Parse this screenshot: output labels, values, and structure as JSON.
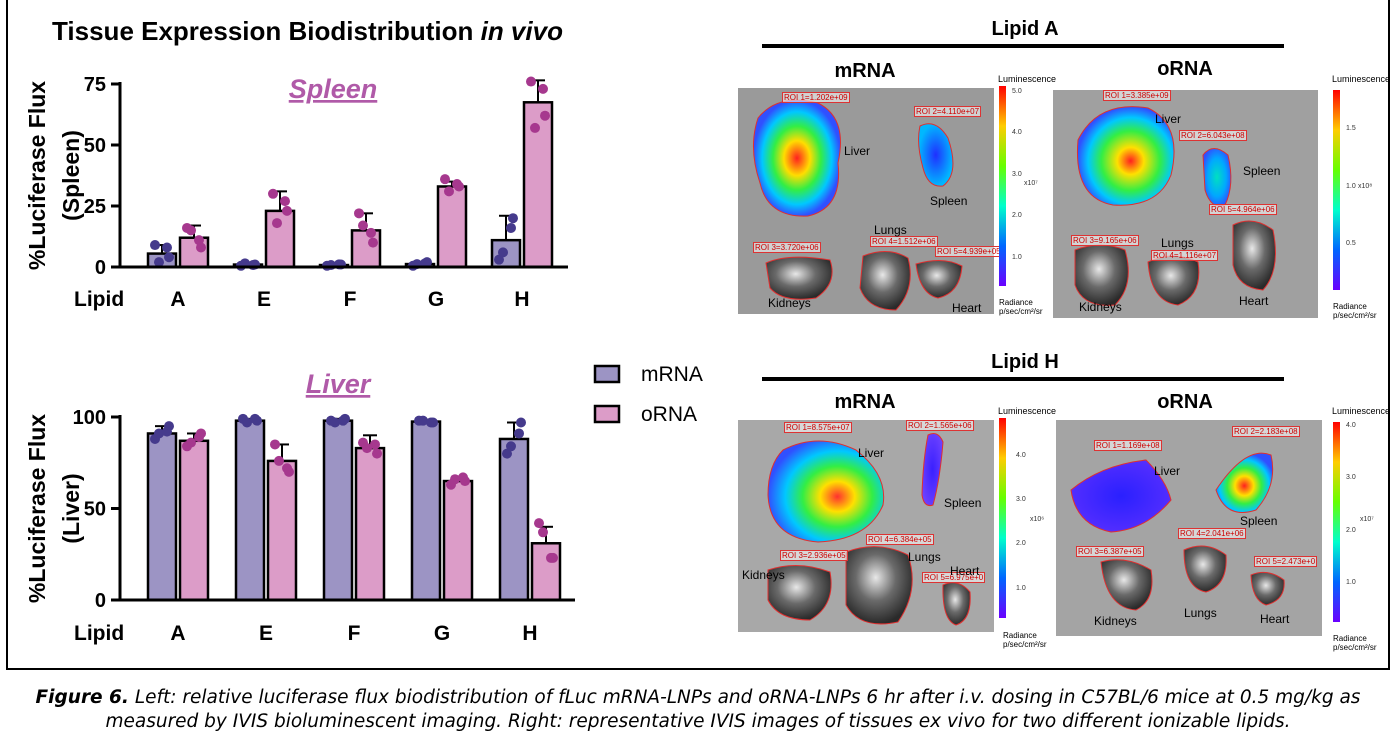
{
  "main_title": {
    "text": "Tissue Expression Biodistribution ",
    "italic": "in vivo"
  },
  "legend": [
    {
      "name": "mRNA",
      "color": "#9c94c4"
    },
    {
      "name": "oRNA",
      "color": "#dc9cc8"
    }
  ],
  "chart_data": [
    {
      "type": "bar",
      "title": "Spleen",
      "title_color": "#b05aa8",
      "ylabel_lines": [
        "%Luciferase Flux",
        "(Spleen)"
      ],
      "xlabel": "Lipid",
      "categories": [
        "A",
        "E",
        "F",
        "G",
        "H"
      ],
      "ylim": [
        0,
        75
      ],
      "yticks": [
        0,
        25,
        50,
        75
      ],
      "series": [
        {
          "name": "mRNA",
          "values": [
            5.5,
            1.0,
            0.8,
            1.2,
            11
          ],
          "errors": [
            3.5,
            0.6,
            0.5,
            0.6,
            10
          ],
          "points": [
            [
              9,
              4,
              2,
              8
            ],
            [
              0.5,
              1.0,
              1.5,
              0.8
            ],
            [
              0.5,
              1,
              0.8,
              1.1
            ],
            [
              0.5,
              2,
              1.2,
              1.5
            ],
            [
              3,
              20,
              6,
              16
            ]
          ]
        },
        {
          "name": "oRNA",
          "values": [
            12,
            23,
            15,
            33,
            67.5
          ],
          "errors": [
            5,
            8,
            7,
            2,
            9
          ],
          "points": [
            [
              16,
              8,
              15,
              11
            ],
            [
              30,
              23,
              18,
              27
            ],
            [
              22,
              10,
              17,
              14
            ],
            [
              36,
              33,
              31,
              34
            ],
            [
              76,
              62,
              57,
              73
            ]
          ]
        }
      ]
    },
    {
      "type": "bar",
      "title": "Liver",
      "title_color": "#b05aa8",
      "ylabel_lines": [
        "%Luciferase Flux",
        "(Liver)"
      ],
      "xlabel": "Lipid",
      "categories": [
        "A",
        "E",
        "F",
        "G",
        "H"
      ],
      "ylim": [
        0,
        100
      ],
      "yticks": [
        0,
        50,
        100
      ],
      "series": [
        {
          "name": "mRNA",
          "values": [
            91,
            98,
            98,
            97.5,
            88
          ],
          "errors": [
            4,
            1,
            1,
            1,
            9
          ],
          "points": [
            [
              88,
              95,
              91,
              92
            ],
            [
              99,
              98,
              97,
              99
            ],
            [
              98,
              99,
              97,
              98
            ],
            [
              98,
              97,
              98,
              97
            ],
            [
              80,
              97,
              84,
              91
            ]
          ]
        },
        {
          "name": "oRNA",
          "values": [
            87,
            76,
            83,
            65,
            31
          ],
          "errors": [
            4,
            9,
            7,
            2,
            9
          ],
          "points": [
            [
              84,
              91,
              86,
              89
            ],
            [
              85,
              70,
              76,
              72
            ],
            [
              86,
              80,
              83,
              85
            ],
            [
              63,
              65,
              66,
              67
            ],
            [
              42,
              23,
              37,
              23
            ]
          ]
        }
      ]
    }
  ],
  "ivis": {
    "sections": [
      {
        "title": "Lipid A"
      },
      {
        "title": "Lipid H"
      }
    ],
    "panels": [
      {
        "column_label": "mRNA",
        "organs": [
          "Liver",
          "Spleen",
          "Lungs",
          "Kidneys",
          "Heart"
        ],
        "rois": [
          "ROI 1=1.202e+09",
          "ROI 2=4.110e+07",
          "ROI 3=3.720e+06",
          "ROI 4=1.512e+06",
          "ROI 5=4.939e+05"
        ],
        "colorbar": {
          "title": "Luminescence",
          "ticks": [
            "5.0",
            "4.0",
            "3.0",
            "2.0",
            "1.0"
          ],
          "exponent": "x10⁷",
          "footer": [
            "Radiance",
            "p/sec/cm²/sr"
          ]
        }
      },
      {
        "column_label": "oRNA",
        "organs": [
          "Liver",
          "Spleen",
          "Lungs",
          "Kidneys",
          "Heart"
        ],
        "rois": [
          "ROI 1=3.385e+09",
          "ROI 2=6.043e+08",
          "ROI 3=9.165e+06",
          "ROI 4=1.116e+07",
          "ROI 5=4.964e+06"
        ],
        "colorbar": {
          "title": "Luminescence",
          "ticks": [
            "1.5",
            "1.0",
            "0.5"
          ],
          "exponent": "x10⁸",
          "footer": [
            "Radiance",
            "p/sec/cm²/sr"
          ]
        }
      },
      {
        "column_label": "mRNA",
        "organs": [
          "Liver",
          "Spleen",
          "Lungs",
          "Kidneys",
          "Heart"
        ],
        "rois": [
          "ROI 1=8.575e+07",
          "ROI 2=1.565e+06",
          "ROI 3=2.936e+05",
          "ROI 4=6.384e+05",
          "ROI 5=6.975e+0"
        ],
        "colorbar": {
          "title": "Luminescence",
          "ticks": [
            "4.0",
            "3.0",
            "2.0",
            "1.0"
          ],
          "exponent": "x10⁶",
          "footer": [
            "Radiance",
            "p/sec/cm²/sr"
          ]
        }
      },
      {
        "column_label": "oRNA",
        "organs": [
          "Liver",
          "Spleen",
          "Lungs",
          "Kidneys",
          "Heart"
        ],
        "rois": [
          "ROI 1=1.169e+08",
          "ROI 2=2.183e+08",
          "ROI 3=6.387e+05",
          "ROI 4=2.041e+06",
          "ROI 5=2.473e+0"
        ],
        "colorbar": {
          "title": "Luminescence",
          "ticks": [
            "4.0",
            "3.0",
            "2.0",
            "1.0"
          ],
          "exponent": "x10⁷",
          "footer": [
            "Radiance",
            "p/sec/cm²/sr"
          ]
        }
      }
    ]
  },
  "caption": {
    "label": "Figure 6.",
    "text": " Left: relative luciferase flux biodistribution of fLuc mRNA-LNPs and oRNA-LNPs 6 hr after i.v. dosing in C57BL/6 mice at 0.5 mg/kg as measured by IVIS bioluminescent imaging. Right: representative IVIS images of tissues ex vivo for two different ionizable lipids."
  }
}
